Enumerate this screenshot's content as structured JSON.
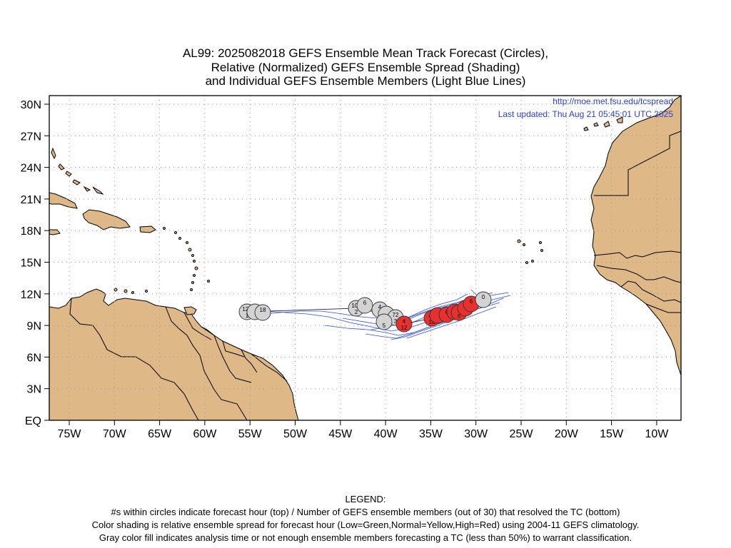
{
  "title": {
    "line1": "AL99: 2025082018 GEFS Ensemble Mean Track Forecast (Circles),",
    "line2": "Relative (Normalized) GEFS Ensemble Spread (Shading)",
    "line3": "and Individual GEFS Ensemble Members (Light Blue Lines)"
  },
  "credits": {
    "url": "http://moe.met.fsu.edu/tcspread",
    "updated": "Last updated: Thu Aug 21 05:45:01 UTC 2025"
  },
  "axes": {
    "lon_ticks": [
      "75W",
      "70W",
      "65W",
      "60W",
      "55W",
      "50W",
      "45W",
      "40W",
      "35W",
      "30W",
      "25W",
      "20W",
      "15W",
      "10W"
    ],
    "lat_ticks": [
      "EQ",
      "3N",
      "6N",
      "9N",
      "12N",
      "15N",
      "18N",
      "21N",
      "24N",
      "27N",
      "30N"
    ]
  },
  "colors": {
    "land": "#deb887",
    "coast": "#000000",
    "member_tracks": "#2b4fe0",
    "mean_track_line": "#000000",
    "circle_gray": "#d3d3d3",
    "circle_red": "#e8302e",
    "credit_text": "#2b3fd8"
  },
  "mean_track": [
    {
      "hour": "120",
      "members": "1",
      "spread": "gray"
    },
    {
      "hour": "",
      "members": "",
      "spread": "gray"
    },
    {
      "hour": "18",
      "members": "",
      "spread": "gray"
    },
    {
      "hour": "102",
      "members": "2",
      "spread": "gray"
    },
    {
      "hour": "6",
      "members": "",
      "spread": "gray"
    },
    {
      "hour": "4",
      "members": "2",
      "spread": "gray"
    },
    {
      "hour": "",
      "members": "",
      "spread": "gray"
    },
    {
      "hour": "72",
      "members": "3",
      "spread": "gray"
    },
    {
      "hour": "",
      "members": "5",
      "spread": "gray"
    },
    {
      "hour": "4",
      "members": "12",
      "spread": "red"
    },
    {
      "hour": "48",
      "members": "18",
      "spread": "red"
    },
    {
      "hour": "",
      "members": "",
      "spread": "red"
    },
    {
      "hour": "6",
      "members": "",
      "spread": "red"
    },
    {
      "hour": "0",
      "members": "",
      "spread": "red"
    },
    {
      "hour": "4",
      "members": "6",
      "spread": "red"
    },
    {
      "hour": "",
      "members": "",
      "spread": "red"
    },
    {
      "hour": "6",
      "members": "",
      "spread": "red"
    },
    {
      "hour": "0",
      "members": "",
      "spread": "gray"
    }
  ],
  "legend": {
    "heading": "LEGEND:",
    "line1": "#s within circles indicate forecast hour (top) / Number of GEFS ensemble members (out of 30) that resolved the TC (bottom)",
    "line2": "Color shading is relative ensemble spread for forecast hour (Low=Green,Normal=Yellow,High=Red) using 2004-11 GEFS climatology.",
    "line3": "Gray color fill indicates analysis time or not enough ensemble members forecasting a TC (less than 50%) to warrant classification."
  }
}
